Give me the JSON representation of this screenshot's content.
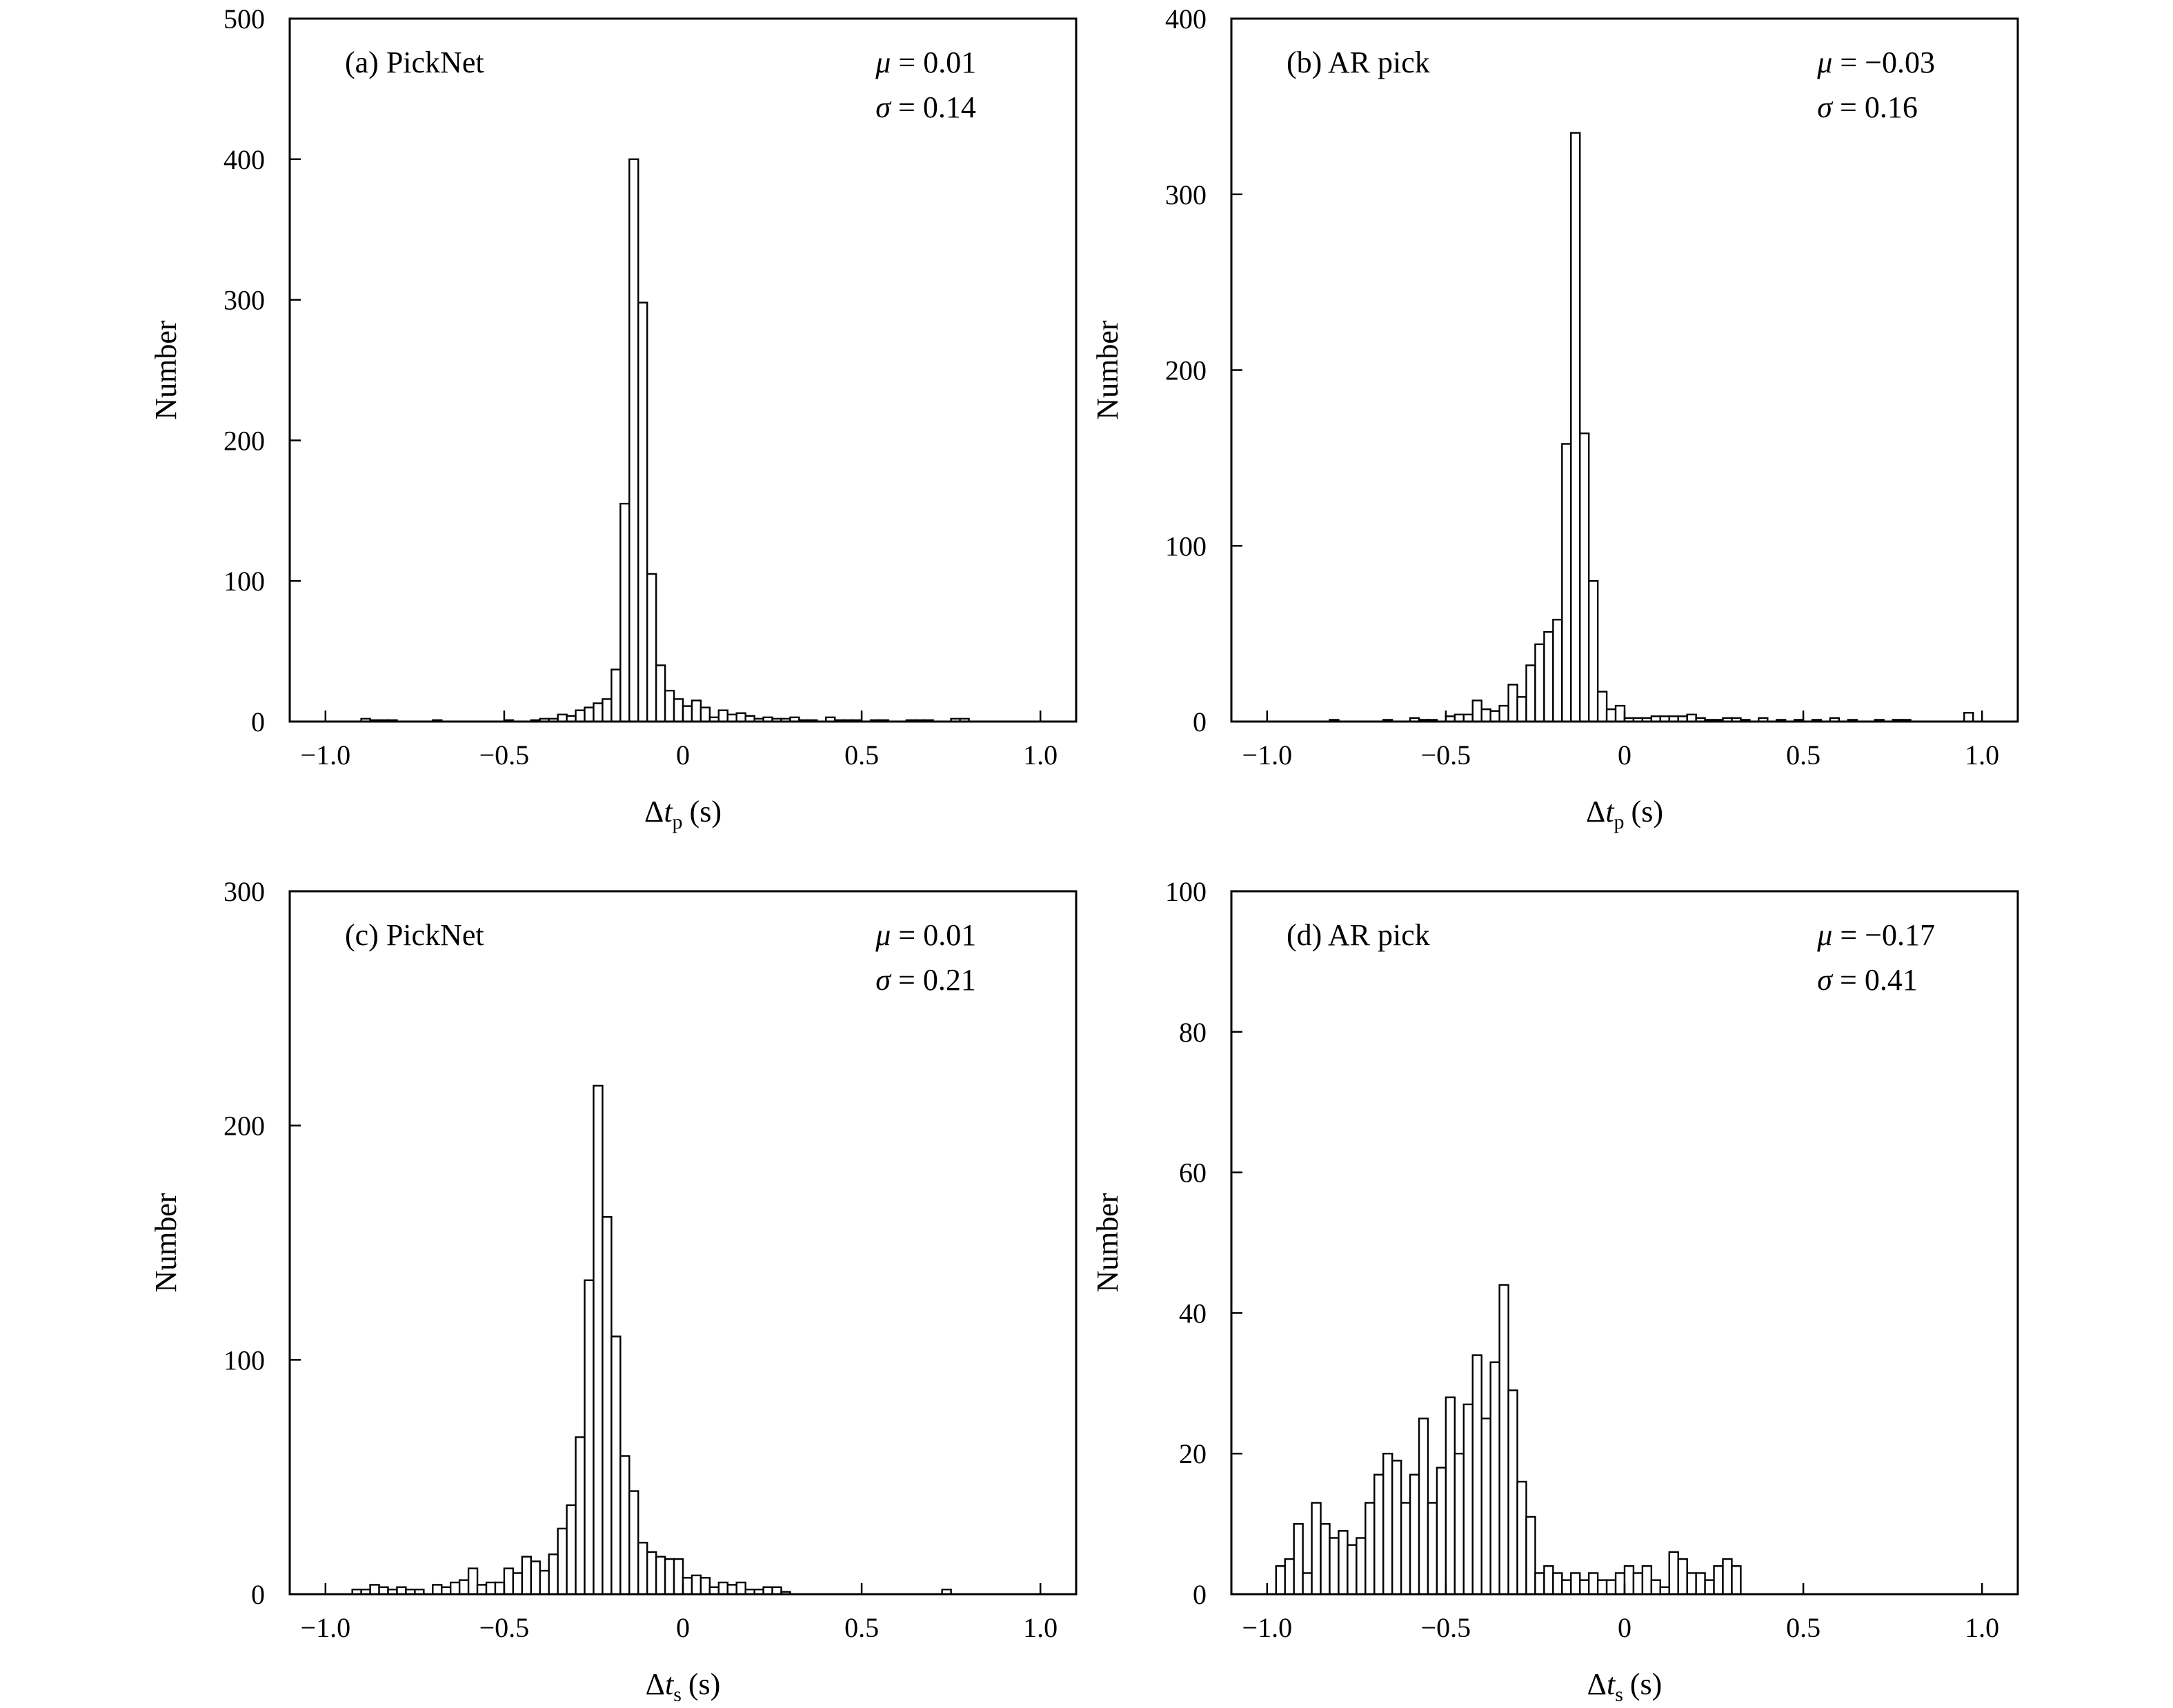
{
  "chart_data": [
    {
      "type": "bar",
      "panel_label": "(a) PickNet",
      "stats": {
        "mu": "0.01",
        "sigma": "0.14"
      },
      "xlabel": {
        "symbol": "t",
        "subscript": "p",
        "unit": "(s)"
      },
      "ylabel": "Number",
      "xlim": [
        -1.0,
        1.0
      ],
      "ylim": [
        0,
        500
      ],
      "xticks": [
        -1.0,
        -0.5,
        0,
        0.5,
        1.0
      ],
      "xtick_labels": [
        "−1.0",
        "−0.5",
        "0",
        "0.5",
        "1.0"
      ],
      "yticks": [
        0,
        100,
        200,
        300,
        400,
        500
      ],
      "ytick_labels": [
        "0",
        "100",
        "200",
        "300",
        "400",
        "500"
      ],
      "bin_width": 0.025,
      "bins": [
        {
          "x": -0.9,
          "y": 2
        },
        {
          "x": -0.875,
          "y": 1
        },
        {
          "x": -0.85,
          "y": 1
        },
        {
          "x": -0.825,
          "y": 1
        },
        {
          "x": -0.7,
          "y": 1
        },
        {
          "x": -0.5,
          "y": 1
        },
        {
          "x": -0.425,
          "y": 1
        },
        {
          "x": -0.4,
          "y": 2
        },
        {
          "x": -0.375,
          "y": 2
        },
        {
          "x": -0.35,
          "y": 5
        },
        {
          "x": -0.325,
          "y": 4
        },
        {
          "x": -0.3,
          "y": 8
        },
        {
          "x": -0.275,
          "y": 10
        },
        {
          "x": -0.25,
          "y": 13
        },
        {
          "x": -0.225,
          "y": 16
        },
        {
          "x": -0.2,
          "y": 37
        },
        {
          "x": -0.175,
          "y": 155
        },
        {
          "x": -0.15,
          "y": 400
        },
        {
          "x": -0.125,
          "y": 298
        },
        {
          "x": -0.1,
          "y": 105
        },
        {
          "x": -0.075,
          "y": 40
        },
        {
          "x": -0.05,
          "y": 22
        },
        {
          "x": -0.025,
          "y": 16
        },
        {
          "x": 0.0,
          "y": 11
        },
        {
          "x": 0.025,
          "y": 15
        },
        {
          "x": 0.05,
          "y": 10
        },
        {
          "x": 0.075,
          "y": 3
        },
        {
          "x": 0.1,
          "y": 8
        },
        {
          "x": 0.125,
          "y": 5
        },
        {
          "x": 0.15,
          "y": 6
        },
        {
          "x": 0.175,
          "y": 4
        },
        {
          "x": 0.2,
          "y": 2
        },
        {
          "x": 0.225,
          "y": 3
        },
        {
          "x": 0.25,
          "y": 2
        },
        {
          "x": 0.275,
          "y": 2
        },
        {
          "x": 0.3,
          "y": 3
        },
        {
          "x": 0.325,
          "y": 1
        },
        {
          "x": 0.35,
          "y": 1
        },
        {
          "x": 0.4,
          "y": 3
        },
        {
          "x": 0.425,
          "y": 1
        },
        {
          "x": 0.45,
          "y": 1
        },
        {
          "x": 0.475,
          "y": 1
        },
        {
          "x": 0.525,
          "y": 1
        },
        {
          "x": 0.55,
          "y": 1
        },
        {
          "x": 0.625,
          "y": 1
        },
        {
          "x": 0.65,
          "y": 1
        },
        {
          "x": 0.675,
          "y": 1
        },
        {
          "x": 0.75,
          "y": 2
        },
        {
          "x": 0.775,
          "y": 2
        }
      ]
    },
    {
      "type": "bar",
      "panel_label": "(b) AR pick",
      "stats": {
        "mu": "−0.03",
        "sigma": "0.16"
      },
      "xlabel": {
        "symbol": "t",
        "subscript": "p",
        "unit": "(s)"
      },
      "ylabel": "Number",
      "xlim": [
        -1.0,
        1.0
      ],
      "ylim": [
        0,
        400
      ],
      "xticks": [
        -1.0,
        -0.5,
        0,
        0.5,
        1.0
      ],
      "xtick_labels": [
        "−1.0",
        "−0.5",
        "0",
        "0.5",
        "1.0"
      ],
      "yticks": [
        0,
        100,
        200,
        300,
        400
      ],
      "ytick_labels": [
        "0",
        "100",
        "200",
        "300",
        "400"
      ],
      "bin_width": 0.025,
      "bins": [
        {
          "x": -0.825,
          "y": 1
        },
        {
          "x": -0.675,
          "y": 1
        },
        {
          "x": -0.6,
          "y": 2
        },
        {
          "x": -0.575,
          "y": 1
        },
        {
          "x": -0.55,
          "y": 1
        },
        {
          "x": -0.5,
          "y": 3
        },
        {
          "x": -0.475,
          "y": 4
        },
        {
          "x": -0.45,
          "y": 4
        },
        {
          "x": -0.425,
          "y": 12
        },
        {
          "x": -0.4,
          "y": 7
        },
        {
          "x": -0.375,
          "y": 6
        },
        {
          "x": -0.35,
          "y": 9
        },
        {
          "x": -0.325,
          "y": 21
        },
        {
          "x": -0.3,
          "y": 14
        },
        {
          "x": -0.275,
          "y": 32
        },
        {
          "x": -0.25,
          "y": 44
        },
        {
          "x": -0.225,
          "y": 51
        },
        {
          "x": -0.2,
          "y": 58
        },
        {
          "x": -0.175,
          "y": 158
        },
        {
          "x": -0.15,
          "y": 335
        },
        {
          "x": -0.125,
          "y": 164
        },
        {
          "x": -0.1,
          "y": 80
        },
        {
          "x": -0.075,
          "y": 17
        },
        {
          "x": -0.05,
          "y": 7
        },
        {
          "x": -0.025,
          "y": 9
        },
        {
          "x": 0.0,
          "y": 2
        },
        {
          "x": 0.025,
          "y": 2
        },
        {
          "x": 0.05,
          "y": 2
        },
        {
          "x": 0.075,
          "y": 3
        },
        {
          "x": 0.1,
          "y": 3
        },
        {
          "x": 0.125,
          "y": 3
        },
        {
          "x": 0.15,
          "y": 3
        },
        {
          "x": 0.175,
          "y": 4
        },
        {
          "x": 0.2,
          "y": 2
        },
        {
          "x": 0.225,
          "y": 1
        },
        {
          "x": 0.25,
          "y": 1
        },
        {
          "x": 0.275,
          "y": 2
        },
        {
          "x": 0.3,
          "y": 2
        },
        {
          "x": 0.325,
          "y": 1
        },
        {
          "x": 0.375,
          "y": 2
        },
        {
          "x": 0.425,
          "y": 1
        },
        {
          "x": 0.475,
          "y": 1
        },
        {
          "x": 0.525,
          "y": 1
        },
        {
          "x": 0.575,
          "y": 2
        },
        {
          "x": 0.625,
          "y": 1
        },
        {
          "x": 0.7,
          "y": 1
        },
        {
          "x": 0.75,
          "y": 1
        },
        {
          "x": 0.775,
          "y": 1
        },
        {
          "x": 0.95,
          "y": 5
        }
      ]
    },
    {
      "type": "bar",
      "panel_label": "(c) PickNet",
      "stats": {
        "mu": "0.01",
        "sigma": "0.21"
      },
      "xlabel": {
        "symbol": "t",
        "subscript": "s",
        "unit": "(s)"
      },
      "ylabel": "Number",
      "xlim": [
        -1.0,
        1.0
      ],
      "ylim": [
        0,
        300
      ],
      "xticks": [
        -1.0,
        -0.5,
        0,
        0.5,
        1.0
      ],
      "xtick_labels": [
        "−1.0",
        "−0.5",
        "0",
        "0.5",
        "1.0"
      ],
      "yticks": [
        0,
        100,
        200,
        300
      ],
      "ytick_labels": [
        "0",
        "100",
        "200",
        "300"
      ],
      "bin_width": 0.025,
      "bins": [
        {
          "x": -0.925,
          "y": 2
        },
        {
          "x": -0.9,
          "y": 2
        },
        {
          "x": -0.875,
          "y": 4
        },
        {
          "x": -0.85,
          "y": 3
        },
        {
          "x": -0.825,
          "y": 2
        },
        {
          "x": -0.8,
          "y": 3
        },
        {
          "x": -0.775,
          "y": 2
        },
        {
          "x": -0.75,
          "y": 2
        },
        {
          "x": -0.7,
          "y": 4
        },
        {
          "x": -0.675,
          "y": 3
        },
        {
          "x": -0.65,
          "y": 5
        },
        {
          "x": -0.625,
          "y": 6
        },
        {
          "x": -0.6,
          "y": 11
        },
        {
          "x": -0.575,
          "y": 4
        },
        {
          "x": -0.55,
          "y": 5
        },
        {
          "x": -0.525,
          "y": 5
        },
        {
          "x": -0.5,
          "y": 11
        },
        {
          "x": -0.475,
          "y": 9
        },
        {
          "x": -0.45,
          "y": 16
        },
        {
          "x": -0.425,
          "y": 14
        },
        {
          "x": -0.4,
          "y": 10
        },
        {
          "x": -0.375,
          "y": 17
        },
        {
          "x": -0.35,
          "y": 28
        },
        {
          "x": -0.325,
          "y": 38
        },
        {
          "x": -0.3,
          "y": 67
        },
        {
          "x": -0.275,
          "y": 134
        },
        {
          "x": -0.25,
          "y": 217
        },
        {
          "x": -0.225,
          "y": 161
        },
        {
          "x": -0.2,
          "y": 110
        },
        {
          "x": -0.175,
          "y": 59
        },
        {
          "x": -0.15,
          "y": 44
        },
        {
          "x": -0.125,
          "y": 22
        },
        {
          "x": -0.1,
          "y": 18
        },
        {
          "x": -0.075,
          "y": 16
        },
        {
          "x": -0.05,
          "y": 15
        },
        {
          "x": -0.025,
          "y": 15
        },
        {
          "x": 0.0,
          "y": 7
        },
        {
          "x": 0.025,
          "y": 8
        },
        {
          "x": 0.05,
          "y": 7
        },
        {
          "x": 0.075,
          "y": 3
        },
        {
          "x": 0.1,
          "y": 5
        },
        {
          "x": 0.125,
          "y": 4
        },
        {
          "x": 0.15,
          "y": 5
        },
        {
          "x": 0.175,
          "y": 2
        },
        {
          "x": 0.2,
          "y": 2
        },
        {
          "x": 0.225,
          "y": 3
        },
        {
          "x": 0.25,
          "y": 3
        },
        {
          "x": 0.275,
          "y": 1
        },
        {
          "x": 0.725,
          "y": 2
        }
      ]
    },
    {
      "type": "bar",
      "panel_label": "(d) AR pick",
      "stats": {
        "mu": "−0.17",
        "sigma": "0.41"
      },
      "xlabel": {
        "symbol": "t",
        "subscript": "s",
        "unit": "(s)"
      },
      "ylabel": "Number",
      "xlim": [
        -1.0,
        1.0
      ],
      "ylim": [
        0,
        100
      ],
      "xticks": [
        -1.0,
        -0.5,
        0,
        0.5,
        1.0
      ],
      "xtick_labels": [
        "−1.0",
        "−0.5",
        "0",
        "0.5",
        "1.0"
      ],
      "yticks": [
        0,
        20,
        40,
        60,
        80,
        100
      ],
      "ytick_labels": [
        "0",
        "20",
        "40",
        "60",
        "80",
        "100"
      ],
      "bin_width": 0.025,
      "bins": [
        {
          "x": -0.975,
          "y": 4
        },
        {
          "x": -0.95,
          "y": 5
        },
        {
          "x": -0.925,
          "y": 10
        },
        {
          "x": -0.9,
          "y": 3
        },
        {
          "x": -0.875,
          "y": 13
        },
        {
          "x": -0.85,
          "y": 10
        },
        {
          "x": -0.825,
          "y": 8
        },
        {
          "x": -0.8,
          "y": 9
        },
        {
          "x": -0.775,
          "y": 7
        },
        {
          "x": -0.75,
          "y": 8
        },
        {
          "x": -0.725,
          "y": 13
        },
        {
          "x": -0.7,
          "y": 17
        },
        {
          "x": -0.675,
          "y": 20
        },
        {
          "x": -0.65,
          "y": 19
        },
        {
          "x": -0.625,
          "y": 13
        },
        {
          "x": -0.6,
          "y": 17
        },
        {
          "x": -0.575,
          "y": 25
        },
        {
          "x": -0.55,
          "y": 13
        },
        {
          "x": -0.525,
          "y": 18
        },
        {
          "x": -0.5,
          "y": 28
        },
        {
          "x": -0.475,
          "y": 20
        },
        {
          "x": -0.45,
          "y": 27
        },
        {
          "x": -0.425,
          "y": 34
        },
        {
          "x": -0.4,
          "y": 25
        },
        {
          "x": -0.375,
          "y": 33
        },
        {
          "x": -0.35,
          "y": 44
        },
        {
          "x": -0.325,
          "y": 29
        },
        {
          "x": -0.3,
          "y": 16
        },
        {
          "x": -0.275,
          "y": 11
        },
        {
          "x": -0.25,
          "y": 3
        },
        {
          "x": -0.225,
          "y": 4
        },
        {
          "x": -0.2,
          "y": 3
        },
        {
          "x": -0.175,
          "y": 2
        },
        {
          "x": -0.15,
          "y": 3
        },
        {
          "x": -0.125,
          "y": 2
        },
        {
          "x": -0.1,
          "y": 3
        },
        {
          "x": -0.075,
          "y": 2
        },
        {
          "x": -0.05,
          "y": 2
        },
        {
          "x": -0.025,
          "y": 3
        },
        {
          "x": 0.0,
          "y": 4
        },
        {
          "x": 0.025,
          "y": 3
        },
        {
          "x": 0.05,
          "y": 4
        },
        {
          "x": 0.075,
          "y": 2
        },
        {
          "x": 0.1,
          "y": 1
        },
        {
          "x": 0.125,
          "y": 6
        },
        {
          "x": 0.15,
          "y": 5
        },
        {
          "x": 0.175,
          "y": 3
        },
        {
          "x": 0.2,
          "y": 3
        },
        {
          "x": 0.225,
          "y": 2
        },
        {
          "x": 0.25,
          "y": 4
        },
        {
          "x": 0.275,
          "y": 5
        },
        {
          "x": 0.3,
          "y": 4
        }
      ]
    }
  ]
}
